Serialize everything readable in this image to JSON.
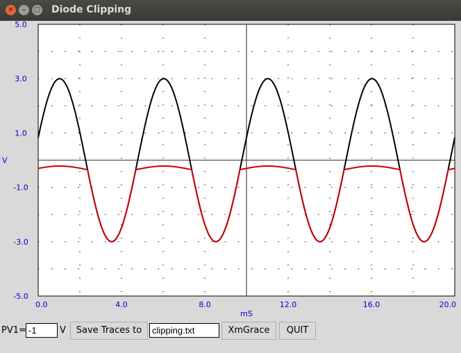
{
  "window": {
    "title": "Diode Clipping"
  },
  "chart_data": {
    "type": "line",
    "xlabel": "mS",
    "ylabel": "V",
    "xlim": [
      0,
      20
    ],
    "ylim": [
      -5,
      5
    ],
    "x_ticks": [
      "0.0",
      "4.0",
      "8.0",
      "12.0",
      "16.0",
      "20.0"
    ],
    "x_tick_values": [
      0,
      4,
      8,
      12,
      16,
      20
    ],
    "y_ticks": [
      "5.0",
      "3.0",
      "1.0",
      "V",
      "-1.0",
      "-3.0",
      "-5.0"
    ],
    "y_tick_values": [
      5,
      3,
      1,
      0,
      -1,
      -3,
      -5
    ],
    "grid": true,
    "series": [
      {
        "name": "",
        "color": "#000000",
        "amplitude": 3.0,
        "frequency_khz": 0.2,
        "phase_deg": 16,
        "clip_max": null,
        "clip_min": null
      },
      {
        "name": "",
        "color": "#cc0000",
        "amplitude": 3.0,
        "frequency_khz": 0.2,
        "phase_deg": 16,
        "clip_max": -0.35,
        "clip_min": null
      }
    ]
  },
  "controls": {
    "pv1_label": "PV1=",
    "pv1_value": "-1",
    "pv1_unit": "V",
    "save_button": "Save Traces to",
    "filename_value": "clipping.txt",
    "xmgrace_button": "XmGrace",
    "quit_button": "QUIT"
  }
}
